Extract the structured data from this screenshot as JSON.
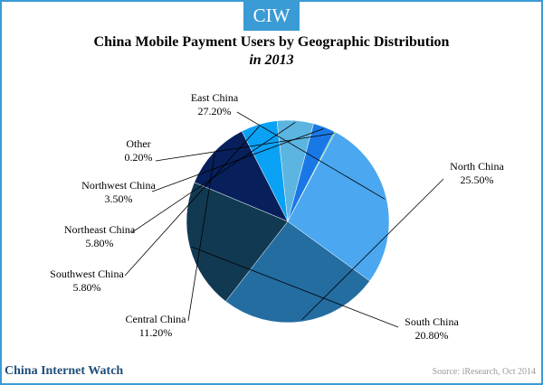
{
  "badge": "CIW",
  "chart_data": {
    "type": "pie",
    "title": "China Mobile Payment Users by Geographic Distribution",
    "subtitle": "in 2013",
    "slices": [
      {
        "name": "East China",
        "value": 27.2,
        "label": "27.20%",
        "color": "#4aa7f0"
      },
      {
        "name": "North China",
        "value": 25.5,
        "label": "25.50%",
        "color": "#236da1"
      },
      {
        "name": "South China",
        "value": 20.8,
        "label": "20.80%",
        "color": "#123952"
      },
      {
        "name": "Central China",
        "value": 11.2,
        "label": "11.20%",
        "color": "#07205c"
      },
      {
        "name": "Southwest China",
        "value": 5.8,
        "label": "5.80%",
        "color": "#0aa2f5"
      },
      {
        "name": "Northeast China",
        "value": 5.8,
        "label": "5.80%",
        "color": "#5cb5e0"
      },
      {
        "name": "Northwest China",
        "value": 3.5,
        "label": "3.50%",
        "color": "#1a78e6"
      },
      {
        "name": "Other",
        "value": 0.2,
        "label": "0.20%",
        "color": "#4dc780"
      }
    ]
  },
  "footer": {
    "brand": "China Internet Watch",
    "source": "Source: iResearch, Oct 2014"
  }
}
